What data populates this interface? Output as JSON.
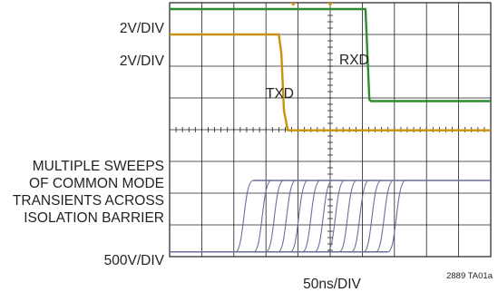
{
  "chart_data": {
    "type": "line",
    "title": "",
    "xlabel": "50ns/DIV",
    "grid": true,
    "divisions": {
      "x": 10,
      "y": 8
    },
    "x_range_div": [
      0,
      10
    ],
    "y_range_div": [
      0,
      8
    ],
    "channel_labels": [
      "2V/DIV",
      "2V/DIV",
      "500V/DIV"
    ],
    "trace_labels": {
      "rxd": "RXD",
      "txd": "TXD"
    },
    "annotation": [
      "MULTIPLE SWEEPS",
      "OF COMMON MODE",
      "TRANSIENTS ACROSS",
      "ISOLATION BARRIER"
    ],
    "figure_id": "2889 TA01a",
    "series": [
      {
        "name": "RXD",
        "color": "#2e8b2e",
        "x": [
          0,
          6.1,
          6.22,
          6.27,
          10
        ],
        "y": [
          0.2,
          0.2,
          3.05,
          3.1,
          3.1
        ]
      },
      {
        "name": "TXD",
        "color": "#c8920e",
        "x": [
          0,
          3.4,
          3.48,
          3.56,
          3.68,
          10
        ],
        "y": [
          1.0,
          1.0,
          1.6,
          3.4,
          4.02,
          4.02
        ]
      },
      {
        "name": "",
        "color": "#6b6f9a",
        "sweep_start_x": [
          2.05,
          2.62,
          3.0,
          3.38,
          3.76,
          4.14,
          4.52,
          4.9,
          5.28,
          5.66,
          6.04,
          6.42,
          6.8
        ],
        "rise_div": 0.55,
        "y_low": 7.85,
        "y_high": 5.6
      }
    ]
  }
}
